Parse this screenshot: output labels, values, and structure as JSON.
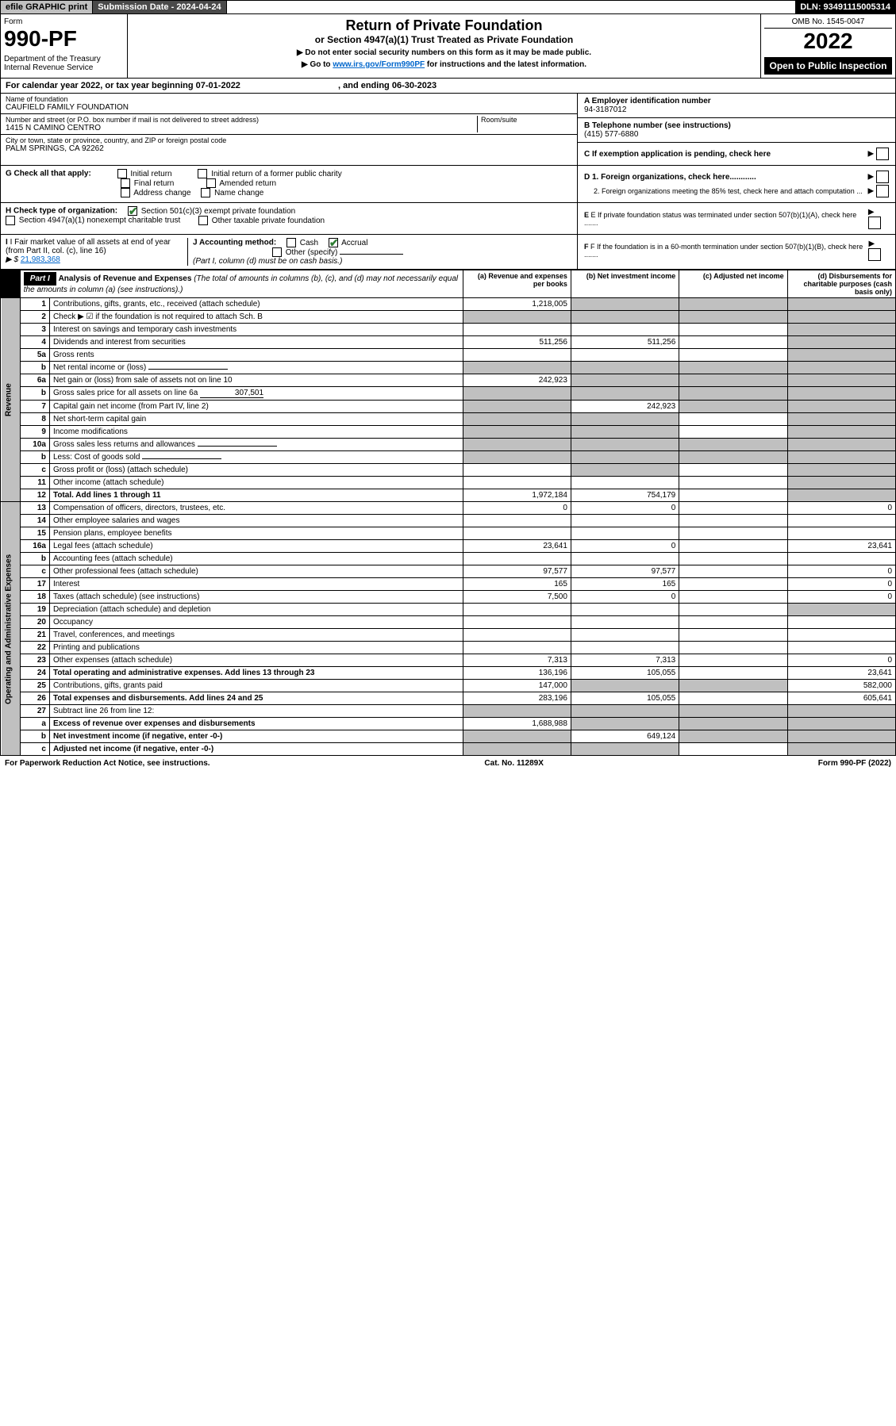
{
  "topbar": {
    "efile": "efile GRAPHIC print",
    "submission": "Submission Date - 2024-04-24",
    "dln": "DLN: 93491115005314"
  },
  "header": {
    "form_label": "Form",
    "form_number": "990-PF",
    "dept": "Department of the Treasury\nInternal Revenue Service",
    "title": "Return of Private Foundation",
    "subtitle": "or Section 4947(a)(1) Trust Treated as Private Foundation",
    "note1": "▶ Do not enter social security numbers on this form as it may be made public.",
    "note2_pre": "▶ Go to ",
    "note2_link": "www.irs.gov/Form990PF",
    "note2_post": " for instructions and the latest information.",
    "omb": "OMB No. 1545-0047",
    "year": "2022",
    "open": "Open to Public Inspection"
  },
  "calyear": {
    "text_pre": "For calendar year 2022, or tax year beginning ",
    "begin": "07-01-2022",
    "text_mid": " , and ending ",
    "end": "06-30-2023"
  },
  "info": {
    "name_label": "Name of foundation",
    "name": "CAUFIELD FAMILY FOUNDATION",
    "addr_label": "Number and street (or P.O. box number if mail is not delivered to street address)",
    "addr": "1415 N CAMINO CENTRO",
    "room_label": "Room/suite",
    "city_label": "City or town, state or province, country, and ZIP or foreign postal code",
    "city": "PALM SPRINGS, CA  92262",
    "ein_label": "A Employer identification number",
    "ein": "94-3187012",
    "phone_label": "B Telephone number (see instructions)",
    "phone": "(415) 577-6880",
    "c_label": "C If exemption application is pending, check here"
  },
  "checks": {
    "g_label": "G Check all that apply:",
    "g_initial": "Initial return",
    "g_initial_former": "Initial return of a former public charity",
    "g_final": "Final return",
    "g_amended": "Amended return",
    "g_address": "Address change",
    "g_name": "Name change",
    "h_label": "H Check type of organization:",
    "h_501c3": "Section 501(c)(3) exempt private foundation",
    "h_4947": "Section 4947(a)(1) nonexempt charitable trust",
    "h_other": "Other taxable private foundation",
    "i_label": "I Fair market value of all assets at end of year (from Part II, col. (c), line 16)",
    "i_value_pre": "▶ $ ",
    "i_value": "21,983,368",
    "j_label": "J Accounting method:",
    "j_cash": "Cash",
    "j_accrual": "Accrual",
    "j_other": "Other (specify)",
    "j_note": "(Part I, column (d) must be on cash basis.)",
    "d1": "D 1. Foreign organizations, check here............",
    "d2": "2. Foreign organizations meeting the 85% test, check here and attach computation ...",
    "e": "E If private foundation status was terminated under section 507(b)(1)(A), check here .......",
    "f": "F If the foundation is in a 60-month termination under section 507(b)(1)(B), check here ......."
  },
  "part1": {
    "label": "Part I",
    "title": "Analysis of Revenue and Expenses",
    "title_note": " (The total of amounts in columns (b), (c), and (d) may not necessarily equal the amounts in column (a) (see instructions).)",
    "col_a": "(a) Revenue and expenses per books",
    "col_b": "(b) Net investment income",
    "col_c": "(c) Adjusted net income",
    "col_d": "(d) Disbursements for charitable purposes (cash basis only)"
  },
  "revenue_label": "Revenue",
  "expenses_label": "Operating and Administrative Expenses",
  "rows": [
    {
      "n": "1",
      "desc": "Contributions, gifts, grants, etc., received (attach schedule)",
      "a": "1,218,005",
      "b": "",
      "c": "",
      "d": "",
      "shade_b": true,
      "shade_c": true,
      "shade_d": true
    },
    {
      "n": "2",
      "desc": "Check ▶ ☑ if the foundation is not required to attach Sch. B",
      "a": "",
      "b": "",
      "c": "",
      "d": "",
      "shade_a": true,
      "shade_b": true,
      "shade_c": true,
      "shade_d": true,
      "bold_not": true
    },
    {
      "n": "3",
      "desc": "Interest on savings and temporary cash investments",
      "a": "",
      "b": "",
      "c": "",
      "d": "",
      "shade_d": true
    },
    {
      "n": "4",
      "desc": "Dividends and interest from securities",
      "a": "511,256",
      "b": "511,256",
      "c": "",
      "d": "",
      "shade_d": true
    },
    {
      "n": "5a",
      "desc": "Gross rents",
      "a": "",
      "b": "",
      "c": "",
      "d": "",
      "shade_d": true
    },
    {
      "n": "b",
      "desc": "Net rental income or (loss)",
      "a": "",
      "b": "",
      "c": "",
      "d": "",
      "shade_a": true,
      "shade_b": true,
      "shade_c": true,
      "shade_d": true,
      "inline": true
    },
    {
      "n": "6a",
      "desc": "Net gain or (loss) from sale of assets not on line 10",
      "a": "242,923",
      "b": "",
      "c": "",
      "d": "",
      "shade_b": true,
      "shade_c": true,
      "shade_d": true
    },
    {
      "n": "b",
      "desc": "Gross sales price for all assets on line 6a",
      "a": "",
      "b": "",
      "c": "",
      "d": "",
      "shade_a": true,
      "shade_b": true,
      "shade_c": true,
      "shade_d": true,
      "inline_val": "307,501"
    },
    {
      "n": "7",
      "desc": "Capital gain net income (from Part IV, line 2)",
      "a": "",
      "b": "242,923",
      "c": "",
      "d": "",
      "shade_a": true,
      "shade_c": true,
      "shade_d": true
    },
    {
      "n": "8",
      "desc": "Net short-term capital gain",
      "a": "",
      "b": "",
      "c": "",
      "d": "",
      "shade_a": true,
      "shade_b": true,
      "shade_d": true
    },
    {
      "n": "9",
      "desc": "Income modifications",
      "a": "",
      "b": "",
      "c": "",
      "d": "",
      "shade_a": true,
      "shade_b": true,
      "shade_d": true
    },
    {
      "n": "10a",
      "desc": "Gross sales less returns and allowances",
      "a": "",
      "b": "",
      "c": "",
      "d": "",
      "shade_a": true,
      "shade_b": true,
      "shade_c": true,
      "shade_d": true,
      "inline": true
    },
    {
      "n": "b",
      "desc": "Less: Cost of goods sold",
      "a": "",
      "b": "",
      "c": "",
      "d": "",
      "shade_a": true,
      "shade_b": true,
      "shade_c": true,
      "shade_d": true,
      "inline": true
    },
    {
      "n": "c",
      "desc": "Gross profit or (loss) (attach schedule)",
      "a": "",
      "b": "",
      "c": "",
      "d": "",
      "shade_b": true,
      "shade_d": true
    },
    {
      "n": "11",
      "desc": "Other income (attach schedule)",
      "a": "",
      "b": "",
      "c": "",
      "d": "",
      "shade_d": true
    },
    {
      "n": "12",
      "desc": "Total. Add lines 1 through 11",
      "a": "1,972,184",
      "b": "754,179",
      "c": "",
      "d": "",
      "bold": true,
      "shade_d": true
    }
  ],
  "exp_rows": [
    {
      "n": "13",
      "desc": "Compensation of officers, directors, trustees, etc.",
      "a": "0",
      "b": "0",
      "c": "",
      "d": "0"
    },
    {
      "n": "14",
      "desc": "Other employee salaries and wages",
      "a": "",
      "b": "",
      "c": "",
      "d": ""
    },
    {
      "n": "15",
      "desc": "Pension plans, employee benefits",
      "a": "",
      "b": "",
      "c": "",
      "d": ""
    },
    {
      "n": "16a",
      "desc": "Legal fees (attach schedule)",
      "a": "23,641",
      "b": "0",
      "c": "",
      "d": "23,641"
    },
    {
      "n": "b",
      "desc": "Accounting fees (attach schedule)",
      "a": "",
      "b": "",
      "c": "",
      "d": ""
    },
    {
      "n": "c",
      "desc": "Other professional fees (attach schedule)",
      "a": "97,577",
      "b": "97,577",
      "c": "",
      "d": "0"
    },
    {
      "n": "17",
      "desc": "Interest",
      "a": "165",
      "b": "165",
      "c": "",
      "d": "0"
    },
    {
      "n": "18",
      "desc": "Taxes (attach schedule) (see instructions)",
      "a": "7,500",
      "b": "0",
      "c": "",
      "d": "0"
    },
    {
      "n": "19",
      "desc": "Depreciation (attach schedule) and depletion",
      "a": "",
      "b": "",
      "c": "",
      "d": "",
      "shade_d": true
    },
    {
      "n": "20",
      "desc": "Occupancy",
      "a": "",
      "b": "",
      "c": "",
      "d": ""
    },
    {
      "n": "21",
      "desc": "Travel, conferences, and meetings",
      "a": "",
      "b": "",
      "c": "",
      "d": ""
    },
    {
      "n": "22",
      "desc": "Printing and publications",
      "a": "",
      "b": "",
      "c": "",
      "d": ""
    },
    {
      "n": "23",
      "desc": "Other expenses (attach schedule)",
      "a": "7,313",
      "b": "7,313",
      "c": "",
      "d": "0"
    },
    {
      "n": "24",
      "desc": "Total operating and administrative expenses. Add lines 13 through 23",
      "a": "136,196",
      "b": "105,055",
      "c": "",
      "d": "23,641",
      "bold": true
    },
    {
      "n": "25",
      "desc": "Contributions, gifts, grants paid",
      "a": "147,000",
      "b": "",
      "c": "",
      "d": "582,000",
      "shade_b": true,
      "shade_c": true
    },
    {
      "n": "26",
      "desc": "Total expenses and disbursements. Add lines 24 and 25",
      "a": "283,196",
      "b": "105,055",
      "c": "",
      "d": "605,641",
      "bold": true
    },
    {
      "n": "27",
      "desc": "Subtract line 26 from line 12:",
      "a": "",
      "b": "",
      "c": "",
      "d": "",
      "shade_a": true,
      "shade_b": true,
      "shade_c": true,
      "shade_d": true
    },
    {
      "n": "a",
      "desc": "Excess of revenue over expenses and disbursements",
      "a": "1,688,988",
      "b": "",
      "c": "",
      "d": "",
      "bold": true,
      "shade_b": true,
      "shade_c": true,
      "shade_d": true
    },
    {
      "n": "b",
      "desc": "Net investment income (if negative, enter -0-)",
      "a": "",
      "b": "649,124",
      "c": "",
      "d": "",
      "bold": true,
      "shade_a": true,
      "shade_c": true,
      "shade_d": true
    },
    {
      "n": "c",
      "desc": "Adjusted net income (if negative, enter -0-)",
      "a": "",
      "b": "",
      "c": "",
      "d": "",
      "bold": true,
      "shade_a": true,
      "shade_b": true,
      "shade_d": true
    }
  ],
  "footer": {
    "paperwork": "For Paperwork Reduction Act Notice, see instructions.",
    "cat": "Cat. No. 11289X",
    "form": "Form 990-PF (2022)"
  }
}
